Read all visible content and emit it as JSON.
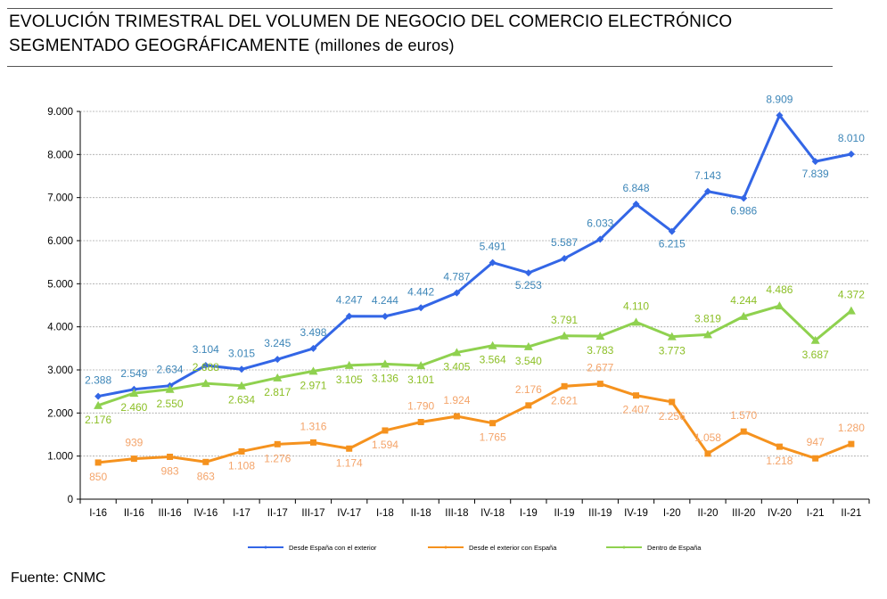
{
  "title": {
    "line1": "EVOLUCIÓN TRIMESTRAL DEL VOLUMEN DE NEGOCIO DEL COMERCIO ELECTRÓNICO",
    "line2": "SEGMENTADO GEOGRÁFICAMENTE",
    "unit": "(millones de euros)"
  },
  "source": "Fuente: CNMC",
  "chart_data": {
    "type": "line",
    "categories": [
      "I-16",
      "II-16",
      "III-16",
      "IV-16",
      "I-17",
      "II-17",
      "III-17",
      "IV-17",
      "I-18",
      "II-18",
      "III-18",
      "IV-18",
      "I-19",
      "II-19",
      "III-19",
      "IV-19",
      "I-20",
      "II-20",
      "III-20",
      "IV-20",
      "I-21",
      "II-21"
    ],
    "ylim": [
      0,
      9000
    ],
    "yticks": [
      0,
      1000,
      2000,
      3000,
      4000,
      5000,
      6000,
      7000,
      8000,
      9000
    ],
    "ytick_labels": [
      "0",
      "1.000",
      "2.000",
      "3.000",
      "4.000",
      "5.000",
      "6.000",
      "7.000",
      "8.000",
      "9.000"
    ],
    "grid": true,
    "legend_position": "bottom",
    "series": [
      {
        "name": "Desde España con el exterior",
        "color": "#3366e6",
        "marker": "diamond",
        "values": [
          2388,
          2549,
          2634,
          3104,
          3015,
          3245,
          3498,
          4247,
          4244,
          4442,
          4787,
          5491,
          5253,
          5587,
          6033,
          6848,
          6215,
          7143,
          6986,
          8909,
          7839,
          8010
        ],
        "labels": [
          "2.388",
          "2.549",
          "2.634",
          "3.104",
          "3.015",
          "3.245",
          "3.498",
          "4.247",
          "4.244",
          "4.442",
          "4.787",
          "5.491",
          "5.253",
          "5.587",
          "6.033",
          "6.848",
          "6.215",
          "7.143",
          "6.986",
          "8.909",
          "7.839",
          "8.010"
        ],
        "label_color": "#3d86b8"
      },
      {
        "name": "Desde el exterior con España",
        "color": "#f5921e",
        "marker": "square",
        "values": [
          850,
          939,
          983,
          863,
          1108,
          1276,
          1316,
          1174,
          1594,
          1790,
          1924,
          1765,
          2176,
          2621,
          2677,
          2407,
          2256,
          1058,
          1570,
          1218,
          947,
          1280
        ],
        "labels": [
          "850",
          "939",
          "983",
          "863",
          "1.108",
          "1.276",
          "1.316",
          "1.174",
          "1.594",
          "1.790",
          "1.924",
          "1.765",
          "2.176",
          "2.621",
          "2.677",
          "2.407",
          "2.256",
          "1.058",
          "1.570",
          "1.218",
          "947",
          "1.280"
        ],
        "label_color": "#f4a46a"
      },
      {
        "name": "Dentro de España",
        "color": "#8fd14f",
        "marker": "triangle",
        "values": [
          2176,
          2460,
          2550,
          2688,
          2634,
          2817,
          2971,
          3105,
          3136,
          3101,
          3405,
          3564,
          3540,
          3791,
          3783,
          4110,
          3773,
          3819,
          4244,
          4486,
          3687,
          4372
        ],
        "labels": [
          "2.176",
          "2.460",
          "2.550",
          "2.688",
          "2.634",
          "2.817",
          "2.971",
          "3.105",
          "3.136",
          "3.101",
          "3.405",
          "3.564",
          "3.540",
          "3.791",
          "3.783",
          "4.110",
          "3.773",
          "3.819",
          "4.244",
          "4.486",
          "3.687",
          "4.372"
        ],
        "label_color": "#8cbf26"
      }
    ]
  }
}
